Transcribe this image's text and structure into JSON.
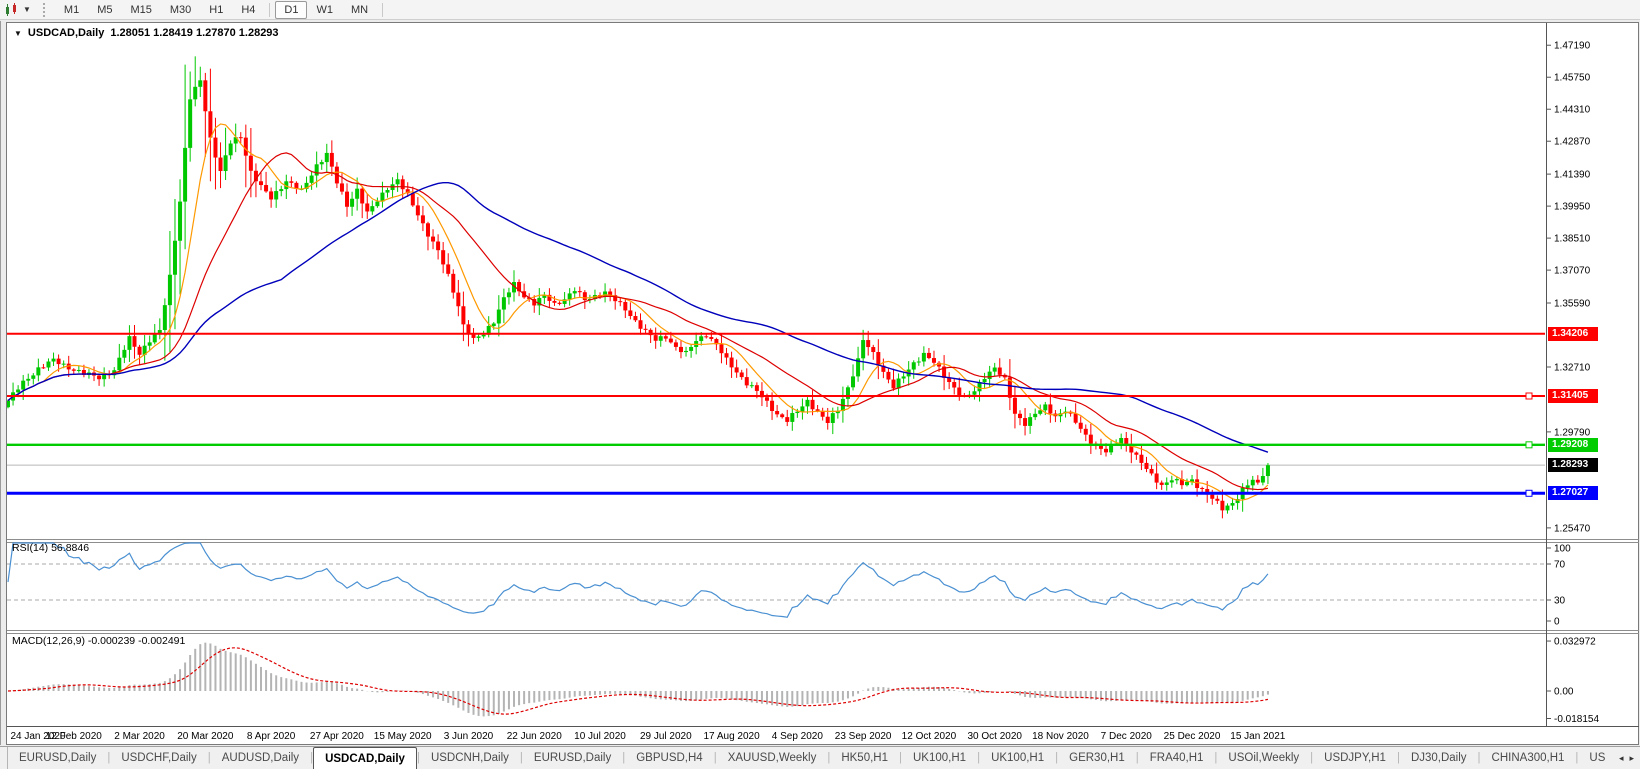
{
  "toolbar": {
    "timeframes": [
      "M1",
      "M5",
      "M15",
      "M30",
      "H1",
      "H4",
      "D1",
      "W1",
      "MN"
    ],
    "active": "D1",
    "dropdown_icon": "▼"
  },
  "chart_header": {
    "collapse_icon": "▼",
    "symbol": "USDCAD,Daily",
    "ohlc": "1.28051 1.28419 1.27870 1.28293"
  },
  "indicators": {
    "rsi_label": "RSI(14) 56.8846",
    "macd_label": "MACD(12,26,9) -0.000239 -0.002491"
  },
  "tabs": {
    "items": [
      "EURUSD,Daily",
      "USDCHF,Daily",
      "AUDUSD,Daily",
      "USDCAD,Daily",
      "USDCNH,Daily",
      "EURUSD,Daily",
      "GBPUSD,H4",
      "XAUUSD,Weekly",
      "HK50,H1",
      "UK100,H1",
      "UK100,H1",
      "GER30,H1",
      "FRA40,H1",
      "USOil,Weekly",
      "USDJPY,H1",
      "DJ30,Daily",
      "CHINA300,H1",
      "US"
    ],
    "active_index": 3,
    "scroll_left": "◂",
    "scroll_right": "▸"
  },
  "chart_data": {
    "type": "candlestick",
    "symbol": "USDCAD",
    "period": "Daily",
    "ohlc_display": {
      "open": "1.28051",
      "high": "1.28419",
      "low": "1.27870",
      "close": "1.28293"
    },
    "candle_count": 250,
    "candles_per_label": 13,
    "date_labels": [
      "24 Jan 2020",
      "12 Feb 2020",
      "2 Mar 2020",
      "20 Mar 2020",
      "8 Apr 2020",
      "27 Apr 2020",
      "15 May 2020",
      "3 Jun 2020",
      "22 Jun 2020",
      "10 Jul 2020",
      "29 Jul 2020",
      "17 Aug 2020",
      "4 Sep 2020",
      "23 Sep 2020",
      "12 Oct 2020",
      "30 Oct 2020",
      "18 Nov 2020",
      "7 Dec 2020",
      "25 Dec 2020",
      "15 Jan 2021"
    ],
    "price_ticks": [
      {
        "label": "1.47190",
        "p": 1.4719
      },
      {
        "label": "1.45750",
        "p": 1.4575
      },
      {
        "label": "1.44310",
        "p": 1.4431
      },
      {
        "label": "1.42870",
        "p": 1.4287
      },
      {
        "label": "1.41390",
        "p": 1.4139
      },
      {
        "label": "1.39950",
        "p": 1.3995
      },
      {
        "label": "1.38510",
        "p": 1.3851
      },
      {
        "label": "1.37070",
        "p": 1.3707
      },
      {
        "label": "1.35590",
        "p": 1.3559
      },
      {
        "label": "1.32710",
        "p": 1.3271
      },
      {
        "label": "1.29790",
        "p": 1.2979
      },
      {
        "label": "1.25470",
        "p": 1.2547
      }
    ],
    "anchors": [
      [
        0,
        1.312
      ],
      [
        3,
        1.32
      ],
      [
        6,
        1.3265
      ],
      [
        9,
        1.33
      ],
      [
        12,
        1.327
      ],
      [
        15,
        1.324
      ],
      [
        18,
        1.3225
      ],
      [
        21,
        1.3255
      ],
      [
        24,
        1.34
      ],
      [
        26,
        1.3335
      ],
      [
        28,
        1.339
      ],
      [
        30,
        1.343
      ],
      [
        32,
        1.368
      ],
      [
        34,
        1.402
      ],
      [
        36,
        1.448
      ],
      [
        38,
        1.456
      ],
      [
        40,
        1.43
      ],
      [
        42,
        1.415
      ],
      [
        44,
        1.428
      ],
      [
        46,
        1.431
      ],
      [
        48,
        1.415
      ],
      [
        50,
        1.408
      ],
      [
        52,
        1.403
      ],
      [
        55,
        1.411
      ],
      [
        58,
        1.406
      ],
      [
        61,
        1.418
      ],
      [
        63,
        1.423
      ],
      [
        65,
        1.41
      ],
      [
        67,
        1.4
      ],
      [
        69,
        1.407
      ],
      [
        71,
        1.396
      ],
      [
        73,
        1.402
      ],
      [
        75,
        1.408
      ],
      [
        77,
        1.411
      ],
      [
        79,
        1.404
      ],
      [
        81,
        1.396
      ],
      [
        83,
        1.387
      ],
      [
        85,
        1.379
      ],
      [
        87,
        1.368
      ],
      [
        89,
        1.355
      ],
      [
        90,
        1.346
      ],
      [
        92,
        1.339
      ],
      [
        94,
        1.342
      ],
      [
        96,
        1.348
      ],
      [
        98,
        1.358
      ],
      [
        100,
        1.364
      ],
      [
        102,
        1.359
      ],
      [
        104,
        1.356
      ],
      [
        106,
        1.359
      ],
      [
        108,
        1.355
      ],
      [
        110,
        1.358
      ],
      [
        112,
        1.362
      ],
      [
        114,
        1.357
      ],
      [
        116,
        1.359
      ],
      [
        118,
        1.361
      ],
      [
        120,
        1.357
      ],
      [
        122,
        1.353
      ],
      [
        124,
        1.348
      ],
      [
        126,
        1.343
      ],
      [
        128,
        1.339
      ],
      [
        130,
        1.341
      ],
      [
        132,
        1.336
      ],
      [
        134,
        1.333
      ],
      [
        136,
        1.339
      ],
      [
        138,
        1.342
      ],
      [
        140,
        1.337
      ],
      [
        142,
        1.33
      ],
      [
        144,
        1.325
      ],
      [
        146,
        1.32
      ],
      [
        148,
        1.316
      ],
      [
        150,
        1.311
      ],
      [
        152,
        1.306
      ],
      [
        154,
        1.303
      ],
      [
        156,
        1.307
      ],
      [
        158,
        1.312
      ],
      [
        160,
        1.307
      ],
      [
        162,
        1.302
      ],
      [
        164,
        1.308
      ],
      [
        166,
        1.318
      ],
      [
        168,
        1.33
      ],
      [
        169,
        1.339
      ],
      [
        171,
        1.333
      ],
      [
        173,
        1.325
      ],
      [
        175,
        1.318
      ],
      [
        177,
        1.323
      ],
      [
        179,
        1.329
      ],
      [
        181,
        1.333
      ],
      [
        183,
        1.329
      ],
      [
        185,
        1.323
      ],
      [
        187,
        1.318
      ],
      [
        189,
        1.313
      ],
      [
        191,
        1.316
      ],
      [
        193,
        1.323
      ],
      [
        195,
        1.327
      ],
      [
        197,
        1.321
      ],
      [
        199,
        1.306
      ],
      [
        201,
        1.302
      ],
      [
        203,
        1.306
      ],
      [
        205,
        1.309
      ],
      [
        207,
        1.305
      ],
      [
        209,
        1.308
      ],
      [
        211,
        1.302
      ],
      [
        213,
        1.296
      ],
      [
        215,
        1.292
      ],
      [
        217,
        1.289
      ],
      [
        219,
        1.293
      ],
      [
        220,
        1.295
      ],
      [
        222,
        1.29
      ],
      [
        224,
        1.284
      ],
      [
        226,
        1.278
      ],
      [
        228,
        1.274
      ],
      [
        230,
        1.277
      ],
      [
        232,
        1.274
      ],
      [
        234,
        1.276
      ],
      [
        236,
        1.272
      ],
      [
        238,
        1.268
      ],
      [
        240,
        1.263
      ],
      [
        242,
        1.266
      ],
      [
        244,
        1.272
      ],
      [
        246,
        1.276
      ],
      [
        247,
        1.274
      ],
      [
        248,
        1.279
      ],
      [
        249,
        1.2829
      ]
    ],
    "extremes": {
      "high": [
        37,
        1.4669
      ],
      "low": [
        240,
        1.259
      ]
    },
    "hlines": [
      {
        "p": 1.34206,
        "label": "1.34206",
        "color": "#ff0000",
        "w": 2,
        "handle": false
      },
      {
        "p": 1.31405,
        "label": "1.31405",
        "color": "#ff0000",
        "w": 2,
        "handle": true
      },
      {
        "p": 1.29208,
        "label": "1.29208",
        "color": "#00cc00",
        "w": 2.4,
        "handle": true
      },
      {
        "p": 1.27027,
        "label": "1.27027",
        "color": "#0000ff",
        "w": 3,
        "handle": true
      }
    ],
    "current_price": {
      "p": 1.28293,
      "label": "1.28293",
      "badge_bg": "#000000"
    },
    "moving_averages": [
      {
        "period": 8,
        "color": "#ff9900",
        "w": 1.2
      },
      {
        "period": 21,
        "color": "#dd0000",
        "w": 1.2
      },
      {
        "period": 55,
        "color": "#0000bb",
        "w": 1.4
      }
    ],
    "rsi": {
      "period": 14,
      "value": 56.8846,
      "color": "#4a90d2",
      "levels": [
        {
          "v": 70,
          "label": "70"
        },
        {
          "v": 30,
          "label": "30"
        }
      ],
      "edge_labels": [
        {
          "v": 100,
          "label": "100"
        },
        {
          "v": 0,
          "label": "0"
        }
      ]
    },
    "macd": {
      "fast": 12,
      "slow": 26,
      "signal": 9,
      "value": -0.000239,
      "signal_value": -0.002491,
      "hist_color": "#b4b4b4",
      "signal_color": "#dd0000",
      "axis": [
        {
          "v": 0.032972,
          "label": "0.032972"
        },
        {
          "v": 0,
          "label": "0.00"
        },
        {
          "v": -0.018154,
          "label": "-0.018154"
        }
      ]
    },
    "colors": {
      "up": "#00c800",
      "down": "#ff0000",
      "grid_dash": "#aaaaaa",
      "current_line": "#b8b8b8"
    }
  }
}
